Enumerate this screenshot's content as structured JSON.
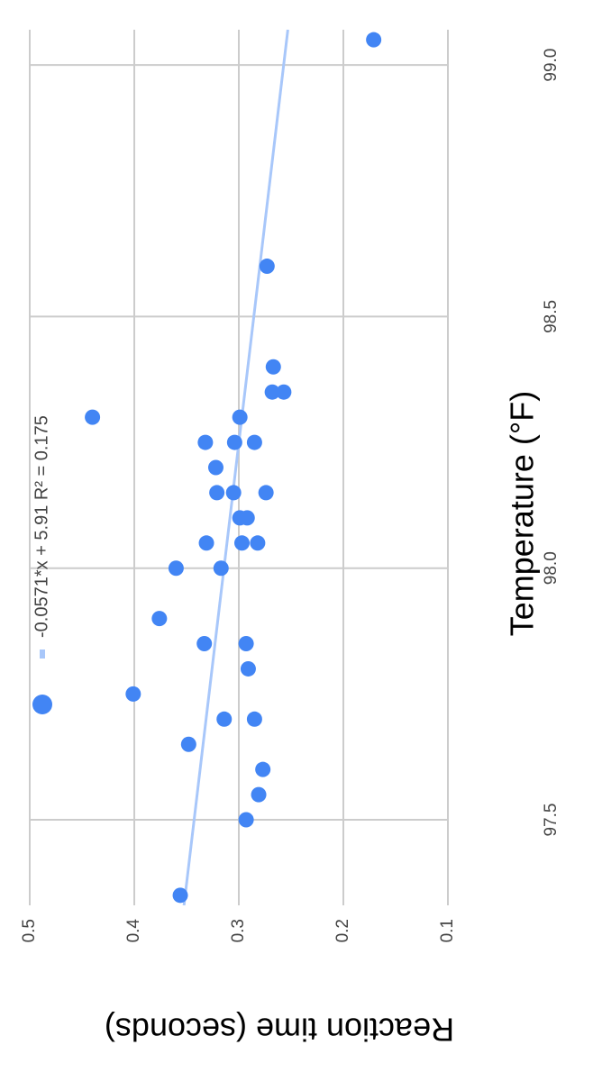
{
  "chart_data": {
    "type": "scatter",
    "x_label": "Temperature (°F)",
    "y_label": "Reaction time (seconds)",
    "x": [
      97.35,
      97.5,
      97.55,
      97.6,
      97.65,
      97.7,
      97.7,
      97.75,
      97.8,
      97.85,
      97.85,
      97.9,
      98.0,
      98.0,
      98.05,
      98.05,
      98.05,
      98.1,
      98.1,
      98.15,
      98.15,
      98.15,
      98.2,
      98.25,
      98.25,
      98.25,
      98.3,
      98.3,
      98.35,
      98.35,
      98.4,
      98.6,
      99.05
    ],
    "series": [
      {
        "color": "#4285f4",
        "values": [
          0.356,
          0.293,
          0.281,
          0.277,
          0.348,
          0.314,
          0.285,
          0.401,
          0.291,
          0.333,
          0.293,
          0.376,
          0.36,
          0.317,
          0.331,
          0.297,
          0.282,
          0.299,
          0.292,
          0.321,
          0.305,
          0.274,
          0.322,
          0.332,
          0.304,
          0.285,
          0.44,
          0.299,
          0.268,
          0.257,
          0.267,
          0.273,
          0.171
        ]
      }
    ],
    "trendline": {
      "label": "-0.0571*x + 5.91 R² = 0.175",
      "slope": -0.0571,
      "intercept": 5.91,
      "color": "#a8c7fa"
    },
    "xlim": [
      97.33,
      99.07
    ],
    "xticks": [
      {
        "value": 97.5,
        "label": "97.5"
      },
      {
        "value": 98.0,
        "label": "98.0"
      },
      {
        "value": 98.5,
        "label": "98.5"
      },
      {
        "value": 99.0,
        "label": "99.0"
      }
    ],
    "ylim": [
      0.1,
      0.5
    ],
    "yticks": [
      0.1,
      0.2,
      0.3,
      0.4,
      0.5
    ],
    "grid": true
  }
}
